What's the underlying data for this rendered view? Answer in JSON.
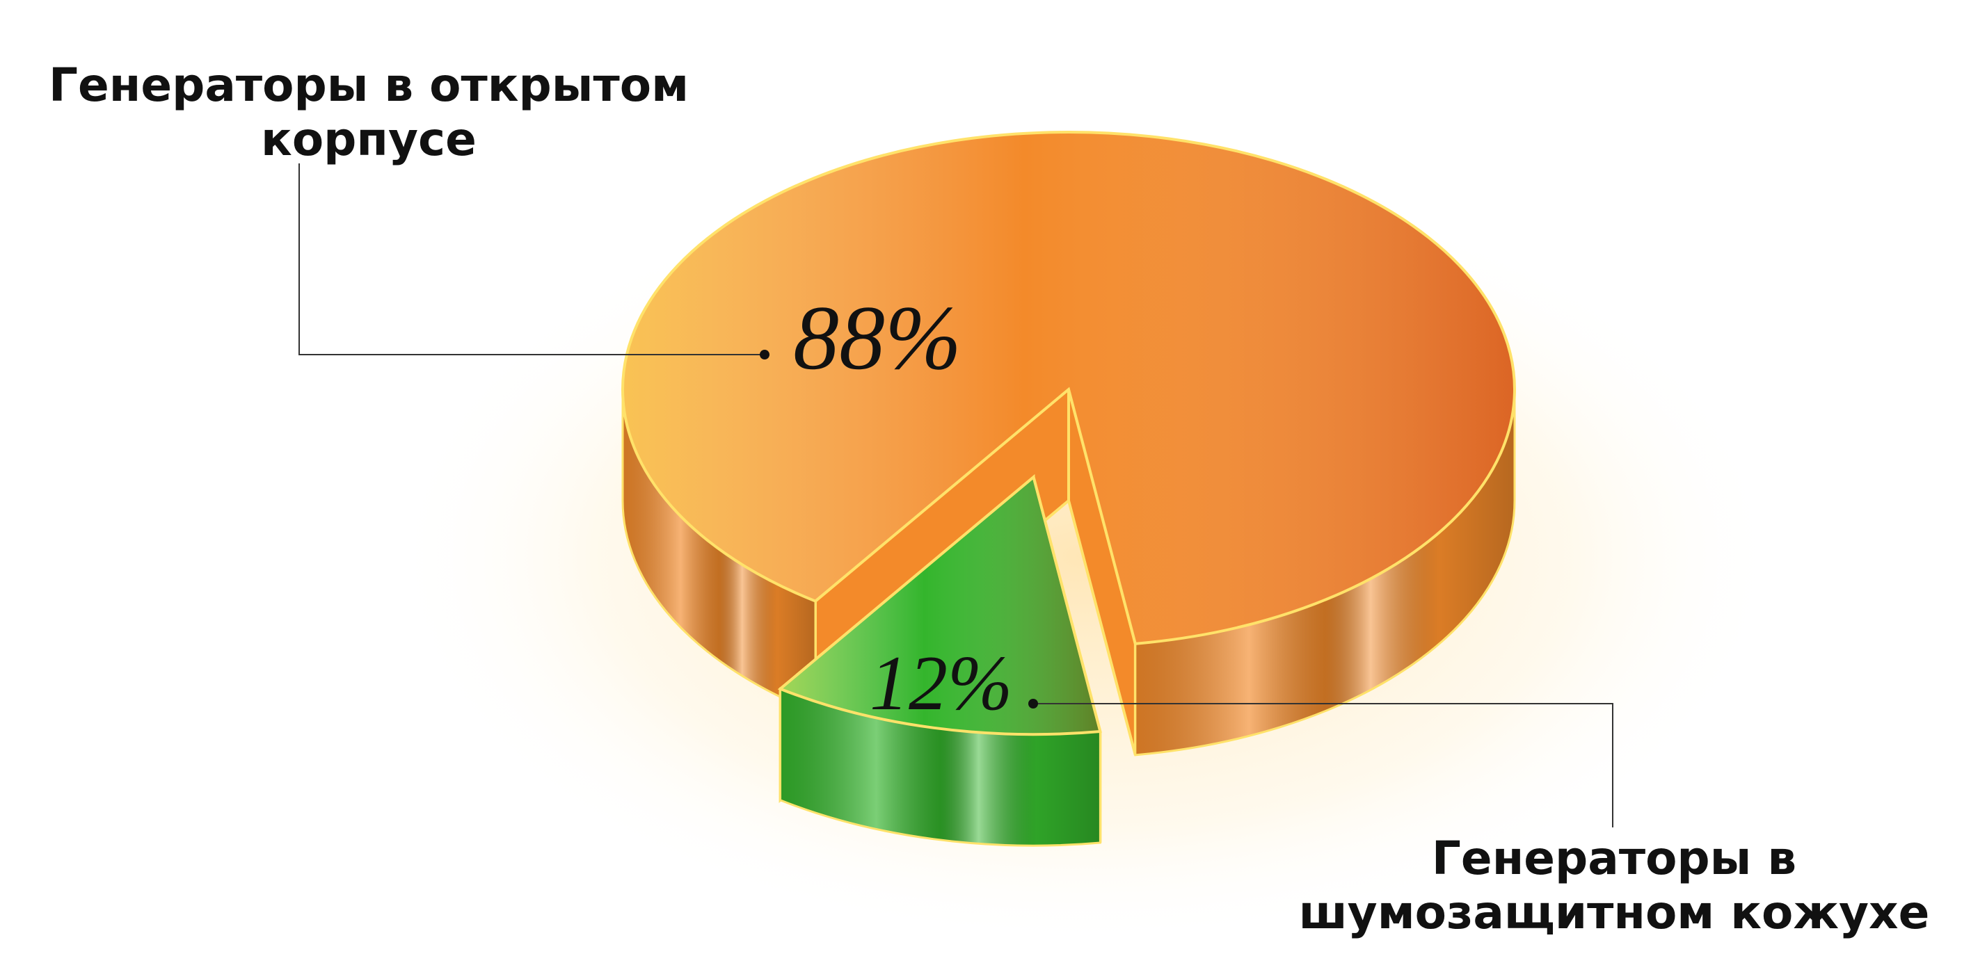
{
  "chart_data": {
    "type": "pie",
    "categories": [
      "Генераторы в открытом корпусе",
      "Генераторы в шумозащитном кожухе"
    ],
    "values": [
      88,
      12
    ],
    "value_labels": [
      "88%",
      "12%"
    ],
    "colors": [
      "#f38a2a",
      "#34b52c"
    ]
  }
}
